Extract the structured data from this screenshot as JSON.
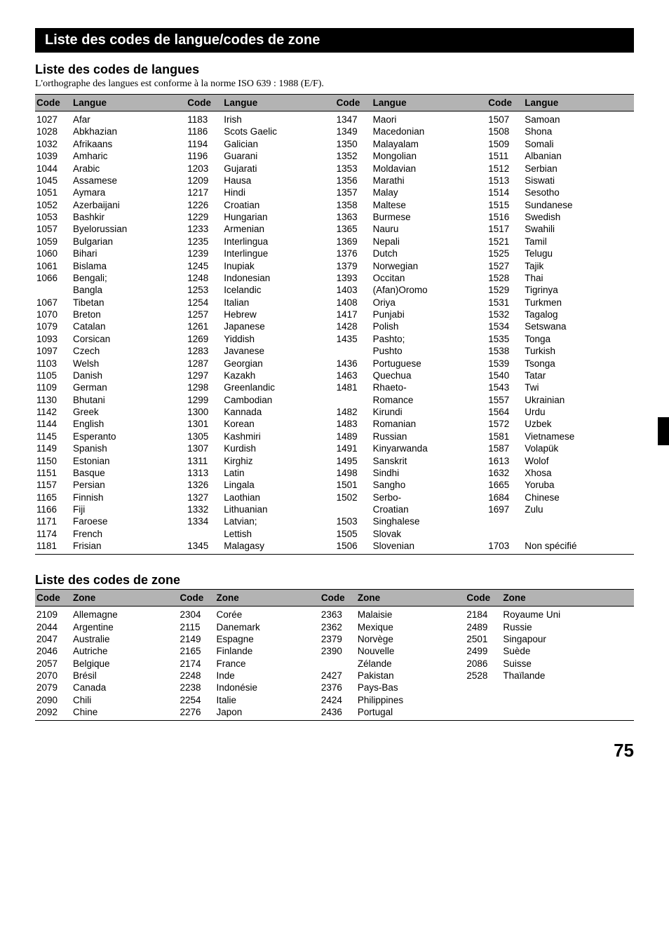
{
  "banner": "Liste des codes de langue/codes de zone",
  "section1": {
    "heading": "Liste des codes de langues",
    "subtitle": "L'orthographe des langues est conforme à la norme ISO 639 : 1988 (E/F).",
    "header_code": "Code",
    "header_label": "Langue"
  },
  "section2": {
    "heading": "Liste des codes de zone",
    "header_code": "Code",
    "header_label": "Zone"
  },
  "page_number": "75",
  "langs": {
    "c1": [
      [
        "1027",
        "Afar"
      ],
      [
        "1028",
        "Abkhazian"
      ],
      [
        "1032",
        "Afrikaans"
      ],
      [
        "1039",
        "Amharic"
      ],
      [
        "1044",
        "Arabic"
      ],
      [
        "1045",
        "Assamese"
      ],
      [
        "1051",
        "Aymara"
      ],
      [
        "1052",
        "Azerbaijani"
      ],
      [
        "1053",
        "Bashkir"
      ],
      [
        "1057",
        "Byelorussian"
      ],
      [
        "1059",
        "Bulgarian"
      ],
      [
        "1060",
        "Bihari"
      ],
      [
        "1061",
        "Bislama"
      ],
      [
        "1066",
        "Bengali;"
      ],
      [
        "",
        "Bangla"
      ],
      [
        "1067",
        "Tibetan"
      ],
      [
        "1070",
        "Breton"
      ],
      [
        "1079",
        "Catalan"
      ],
      [
        "1093",
        "Corsican"
      ],
      [
        "1097",
        "Czech"
      ],
      [
        "1103",
        "Welsh"
      ],
      [
        "1105",
        "Danish"
      ],
      [
        "1109",
        "German"
      ],
      [
        "1130",
        "Bhutani"
      ],
      [
        "1142",
        "Greek"
      ],
      [
        "1144",
        "English"
      ],
      [
        "1145",
        "Esperanto"
      ],
      [
        "1149",
        "Spanish"
      ],
      [
        "1150",
        "Estonian"
      ],
      [
        "1151",
        "Basque"
      ],
      [
        "1157",
        "Persian"
      ],
      [
        "1165",
        "Finnish"
      ],
      [
        "1166",
        "Fiji"
      ],
      [
        "1171",
        "Faroese"
      ],
      [
        "1174",
        "French"
      ],
      [
        "1181",
        "Frisian"
      ]
    ],
    "c2": [
      [
        "1183",
        "Irish"
      ],
      [
        "1186",
        "Scots Gaelic"
      ],
      [
        "1194",
        "Galician"
      ],
      [
        "1196",
        "Guarani"
      ],
      [
        "1203",
        "Gujarati"
      ],
      [
        "1209",
        "Hausa"
      ],
      [
        "1217",
        "Hindi"
      ],
      [
        "1226",
        "Croatian"
      ],
      [
        "1229",
        "Hungarian"
      ],
      [
        "1233",
        "Armenian"
      ],
      [
        "1235",
        "Interlingua"
      ],
      [
        "1239",
        "Interlingue"
      ],
      [
        "1245",
        "Inupiak"
      ],
      [
        "1248",
        "Indonesian"
      ],
      [
        "1253",
        "Icelandic"
      ],
      [
        "1254",
        "Italian"
      ],
      [
        "1257",
        "Hebrew"
      ],
      [
        "1261",
        "Japanese"
      ],
      [
        "1269",
        "Yiddish"
      ],
      [
        "1283",
        "Javanese"
      ],
      [
        "1287",
        "Georgian"
      ],
      [
        "1297",
        "Kazakh"
      ],
      [
        "1298",
        "Greenlandic"
      ],
      [
        "1299",
        "Cambodian"
      ],
      [
        "1300",
        "Kannada"
      ],
      [
        "1301",
        "Korean"
      ],
      [
        "1305",
        "Kashmiri"
      ],
      [
        "1307",
        "Kurdish"
      ],
      [
        "1311",
        "Kirghiz"
      ],
      [
        "1313",
        "Latin"
      ],
      [
        "1326",
        "Lingala"
      ],
      [
        "1327",
        "Laothian"
      ],
      [
        "1332",
        "Lithuanian"
      ],
      [
        "1334",
        "Latvian;"
      ],
      [
        "",
        "Lettish"
      ],
      [
        "1345",
        "Malagasy"
      ]
    ],
    "c3": [
      [
        "1347",
        "Maori"
      ],
      [
        "1349",
        "Macedonian"
      ],
      [
        "1350",
        "Malayalam"
      ],
      [
        "1352",
        "Mongolian"
      ],
      [
        "1353",
        "Moldavian"
      ],
      [
        "1356",
        "Marathi"
      ],
      [
        "1357",
        "Malay"
      ],
      [
        "1358",
        "Maltese"
      ],
      [
        "1363",
        "Burmese"
      ],
      [
        "1365",
        "Nauru"
      ],
      [
        "1369",
        "Nepali"
      ],
      [
        "1376",
        "Dutch"
      ],
      [
        "1379",
        "Norwegian"
      ],
      [
        "1393",
        "Occitan"
      ],
      [
        "1403",
        "(Afan)Oromo"
      ],
      [
        "1408",
        "Oriya"
      ],
      [
        "1417",
        "Punjabi"
      ],
      [
        "1428",
        "Polish"
      ],
      [
        "1435",
        "Pashto;"
      ],
      [
        "",
        "Pushto"
      ],
      [
        "1436",
        "Portuguese"
      ],
      [
        "1463",
        "Quechua"
      ],
      [
        "1481",
        "Rhaeto-"
      ],
      [
        "",
        "Romance"
      ],
      [
        "1482",
        "Kirundi"
      ],
      [
        "1483",
        "Romanian"
      ],
      [
        "1489",
        "Russian"
      ],
      [
        "1491",
        "Kinyarwanda"
      ],
      [
        "1495",
        "Sanskrit"
      ],
      [
        "1498",
        "Sindhi"
      ],
      [
        "1501",
        "Sangho"
      ],
      [
        "1502",
        "Serbo-"
      ],
      [
        "",
        "Croatian"
      ],
      [
        "1503",
        "Singhalese"
      ],
      [
        "1505",
        "Slovak"
      ],
      [
        "1506",
        "Slovenian"
      ]
    ],
    "c4": [
      [
        "1507",
        "Samoan"
      ],
      [
        "1508",
        "Shona"
      ],
      [
        "1509",
        "Somali"
      ],
      [
        "1511",
        "Albanian"
      ],
      [
        "1512",
        "Serbian"
      ],
      [
        "1513",
        "Siswati"
      ],
      [
        "1514",
        "Sesotho"
      ],
      [
        "1515",
        "Sundanese"
      ],
      [
        "1516",
        "Swedish"
      ],
      [
        "1517",
        "Swahili"
      ],
      [
        "1521",
        "Tamil"
      ],
      [
        "1525",
        "Telugu"
      ],
      [
        "1527",
        "Tajik"
      ],
      [
        "1528",
        "Thai"
      ],
      [
        "1529",
        "Tigrinya"
      ],
      [
        "1531",
        "Turkmen"
      ],
      [
        "1532",
        "Tagalog"
      ],
      [
        "1534",
        "Setswana"
      ],
      [
        "1535",
        "Tonga"
      ],
      [
        "1538",
        "Turkish"
      ],
      [
        "1539",
        "Tsonga"
      ],
      [
        "1540",
        "Tatar"
      ],
      [
        "1543",
        "Twi"
      ],
      [
        "1557",
        "Ukrainian"
      ],
      [
        "1564",
        "Urdu"
      ],
      [
        "1572",
        "Uzbek"
      ],
      [
        "1581",
        "Vietnamese"
      ],
      [
        "1587",
        "Volapük"
      ],
      [
        "1613",
        "Wolof"
      ],
      [
        "1632",
        "Xhosa"
      ],
      [
        "1665",
        "Yoruba"
      ],
      [
        "1684",
        "Chinese"
      ],
      [
        "1697",
        "Zulu"
      ],
      [
        "",
        ""
      ],
      [
        "",
        ""
      ],
      [
        "1703",
        "Non spécifié"
      ]
    ]
  },
  "zones": {
    "c1": [
      [
        "2109",
        "Allemagne"
      ],
      [
        "2044",
        "Argentine"
      ],
      [
        "2047",
        "Australie"
      ],
      [
        "2046",
        "Autriche"
      ],
      [
        "2057",
        "Belgique"
      ],
      [
        "2070",
        "Brésil"
      ],
      [
        "2079",
        "Canada"
      ],
      [
        "2090",
        "Chili"
      ],
      [
        "2092",
        "Chine"
      ]
    ],
    "c2": [
      [
        "2304",
        "Corée"
      ],
      [
        "2115",
        "Danemark"
      ],
      [
        "2149",
        "Espagne"
      ],
      [
        "2165",
        "Finlande"
      ],
      [
        "2174",
        "France"
      ],
      [
        "2248",
        "Inde"
      ],
      [
        "2238",
        "Indonésie"
      ],
      [
        "2254",
        "Italie"
      ],
      [
        "2276",
        "Japon"
      ]
    ],
    "c3": [
      [
        "2363",
        "Malaisie"
      ],
      [
        "2362",
        "Mexique"
      ],
      [
        "2379",
        "Norvège"
      ],
      [
        "2390",
        "Nouvelle"
      ],
      [
        "",
        "Zélande"
      ],
      [
        "2427",
        "Pakistan"
      ],
      [
        "2376",
        "Pays-Bas"
      ],
      [
        "2424",
        "Philippines"
      ],
      [
        "2436",
        "Portugal"
      ]
    ],
    "c4": [
      [
        "2184",
        "Royaume Uni"
      ],
      [
        "2489",
        "Russie"
      ],
      [
        "2501",
        "Singapour"
      ],
      [
        "2499",
        "Suède"
      ],
      [
        "2086",
        "Suisse"
      ],
      [
        "2528",
        "Thaïlande"
      ],
      [
        "",
        ""
      ],
      [
        "",
        ""
      ],
      [
        "",
        ""
      ]
    ]
  }
}
